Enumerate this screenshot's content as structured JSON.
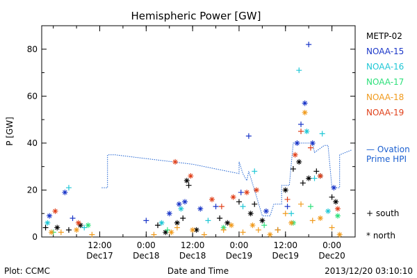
{
  "chart_data": {
    "type": "scatter",
    "title": "Hemispheric Power [GW]",
    "xlabel": "Date and Time",
    "ylabel": "P [GW]",
    "ylim": [
      0,
      90
    ],
    "xlim": [
      "2013-12-16 21:00",
      "2013-12-20 06:00"
    ],
    "y_ticks": [
      0,
      20,
      40,
      60,
      80
    ],
    "x_ticks": [
      {
        "at": "2013-12-17 12:00",
        "time": "12:00",
        "date": "Dec17"
      },
      {
        "at": "2013-12-18 00:00",
        "time": "0:00",
        "date": "Dec18"
      },
      {
        "at": "2013-12-18 12:00",
        "time": "12:00",
        "date": "Dec18"
      },
      {
        "at": "2013-12-19 00:00",
        "time": "0:00",
        "date": "Dec19"
      },
      {
        "at": "2013-12-19 12:00",
        "time": "12:00",
        "date": "Dec19"
      },
      {
        "at": "2013-12-20 00:00",
        "time": "0:00",
        "date": "Dec20"
      }
    ],
    "series": [
      {
        "name": "METP-02",
        "color": "#000000",
        "points": [
          [
            "2013-12-16 22:00",
            4,
            "+"
          ],
          [
            "2013-12-17 01:00",
            4,
            "*"
          ],
          [
            "2013-12-17 04:00",
            3,
            "+"
          ],
          [
            "2013-12-17 07:00",
            5,
            "*"
          ],
          [
            "2013-12-18 03:00",
            5,
            "+"
          ],
          [
            "2013-12-18 05:00",
            2,
            "*"
          ],
          [
            "2013-12-18 08:00",
            6,
            "*"
          ],
          [
            "2013-12-18 09:30",
            8,
            "+"
          ],
          [
            "2013-12-18 10:30",
            24,
            "*"
          ],
          [
            "2013-12-18 11:00",
            22,
            "+"
          ],
          [
            "2013-12-18 13:00",
            3,
            "*"
          ],
          [
            "2013-12-18 19:00",
            8,
            "+"
          ],
          [
            "2013-12-18 21:00",
            6,
            "*"
          ],
          [
            "2013-12-19 00:00",
            15,
            "+"
          ],
          [
            "2013-12-19 03:00",
            10,
            "*"
          ],
          [
            "2013-12-19 04:00",
            14,
            "+"
          ],
          [
            "2013-12-19 06:00",
            7,
            "*"
          ],
          [
            "2013-12-19 10:00",
            3,
            "+"
          ],
          [
            "2013-12-19 12:00",
            20,
            "*"
          ],
          [
            "2013-12-19 14:00",
            29,
            "+"
          ],
          [
            "2013-12-19 15:30",
            32,
            "*"
          ],
          [
            "2013-12-19 16:30",
            23,
            "+"
          ],
          [
            "2013-12-19 18:00",
            25,
            "*"
          ],
          [
            "2013-12-19 20:00",
            28,
            "+"
          ],
          [
            "2013-12-19 21:00",
            26,
            "*"
          ],
          [
            "2013-12-20 00:00",
            17,
            "+"
          ],
          [
            "2013-12-20 01:00",
            15,
            "*"
          ]
        ]
      },
      {
        "name": "NOAA-15",
        "color": "#1a36c8",
        "points": [
          [
            "2013-12-16 23:00",
            9,
            "*"
          ],
          [
            "2013-12-17 03:00",
            19,
            "*"
          ],
          [
            "2013-12-17 05:00",
            8,
            "+"
          ],
          [
            "2013-12-18 00:00",
            7,
            "+"
          ],
          [
            "2013-12-18 06:00",
            10,
            "*"
          ],
          [
            "2013-12-18 08:30",
            14,
            "*"
          ],
          [
            "2013-12-18 10:00",
            15,
            "*"
          ],
          [
            "2013-12-18 14:00",
            12,
            "*"
          ],
          [
            "2013-12-18 18:00",
            13,
            "+"
          ],
          [
            "2013-12-19 00:30",
            19,
            "+"
          ],
          [
            "2013-12-19 02:30",
            43,
            "+"
          ],
          [
            "2013-12-19 07:00",
            11,
            "*"
          ],
          [
            "2013-12-19 12:30",
            13,
            "+"
          ],
          [
            "2013-12-19 15:00",
            40,
            "*"
          ],
          [
            "2013-12-19 16:00",
            48,
            "+"
          ],
          [
            "2013-12-19 17:00",
            57,
            "*"
          ],
          [
            "2013-12-19 18:00",
            82,
            "+"
          ],
          [
            "2013-12-19 19:00",
            40,
            "*"
          ],
          [
            "2013-12-20 00:30",
            21,
            "*"
          ]
        ]
      },
      {
        "name": "NOAA-16",
        "color": "#1fc7d6",
        "points": [
          [
            "2013-12-16 22:30",
            6,
            "*"
          ],
          [
            "2013-12-17 04:00",
            21,
            "+"
          ],
          [
            "2013-12-17 08:00",
            4,
            "+"
          ],
          [
            "2013-12-18 04:00",
            6,
            "*"
          ],
          [
            "2013-12-18 09:00",
            12,
            "*"
          ],
          [
            "2013-12-18 16:00",
            7,
            "+"
          ],
          [
            "2013-12-19 01:00",
            13,
            "+"
          ],
          [
            "2013-12-19 04:00",
            28,
            "+"
          ],
          [
            "2013-12-19 13:30",
            10,
            "+"
          ],
          [
            "2013-12-19 15:30",
            71,
            "+"
          ],
          [
            "2013-12-19 17:30",
            45,
            "*"
          ],
          [
            "2013-12-19 19:30",
            25,
            "+"
          ],
          [
            "2013-12-19 21:30",
            44,
            "+"
          ],
          [
            "2013-12-19 23:00",
            11,
            "*"
          ]
        ]
      },
      {
        "name": "NOAA-17",
        "color": "#2ce07a",
        "points": [
          [
            "2013-12-17 00:00",
            2,
            "+"
          ],
          [
            "2013-12-17 09:00",
            5,
            "*"
          ],
          [
            "2013-12-18 05:30",
            3,
            "+"
          ],
          [
            "2013-12-18 20:00",
            4,
            "*"
          ],
          [
            "2013-12-19 06:30",
            5,
            "+"
          ],
          [
            "2013-12-19 14:00",
            6,
            "*"
          ],
          [
            "2013-12-19 18:30",
            13,
            "+"
          ],
          [
            "2013-12-20 01:30",
            9,
            "*"
          ]
        ]
      },
      {
        "name": "NOAA-18",
        "color": "#f09a1c",
        "points": [
          [
            "2013-12-16 23:30",
            2,
            "*"
          ],
          [
            "2013-12-17 02:00",
            2,
            "+"
          ],
          [
            "2013-12-17 06:00",
            3,
            "*"
          ],
          [
            "2013-12-17 10:00",
            1,
            "+"
          ],
          [
            "2013-12-18 02:00",
            1,
            "+"
          ],
          [
            "2013-12-18 06:30",
            2,
            "*"
          ],
          [
            "2013-12-18 08:00",
            4,
            "+"
          ],
          [
            "2013-12-18 12:00",
            3,
            "*"
          ],
          [
            "2013-12-18 15:00",
            1,
            "+"
          ],
          [
            "2013-12-18 20:00",
            3,
            "+"
          ],
          [
            "2013-12-18 22:00",
            5,
            "*"
          ],
          [
            "2013-12-19 01:00",
            2,
            "+"
          ],
          [
            "2013-12-19 03:30",
            5,
            "*"
          ],
          [
            "2013-12-19 05:00",
            3,
            "+"
          ],
          [
            "2013-12-19 08:00",
            1,
            "*"
          ],
          [
            "2013-12-19 10:00",
            3,
            "+"
          ],
          [
            "2013-12-19 12:00",
            10,
            "+"
          ],
          [
            "2013-12-19 13:30",
            6,
            "*"
          ],
          [
            "2013-12-19 16:00",
            14,
            "+"
          ],
          [
            "2013-12-19 17:00",
            53,
            "*"
          ],
          [
            "2013-12-19 19:00",
            7,
            "+"
          ],
          [
            "2013-12-19 21:00",
            8,
            "*"
          ],
          [
            "2013-12-20 00:00",
            4,
            "+"
          ],
          [
            "2013-12-20 02:00",
            1,
            "*"
          ]
        ]
      },
      {
        "name": "NOAA-19",
        "color": "#e0401a",
        "points": [
          [
            "2013-12-17 00:30",
            11,
            "*"
          ],
          [
            "2013-12-17 06:30",
            6,
            "*"
          ],
          [
            "2013-12-18 07:30",
            32,
            "*"
          ],
          [
            "2013-12-18 11:30",
            26,
            "*"
          ],
          [
            "2013-12-18 17:00",
            16,
            "*"
          ],
          [
            "2013-12-18 19:30",
            13,
            "+"
          ],
          [
            "2013-12-18 22:30",
            17,
            "*"
          ],
          [
            "2013-12-19 02:00",
            19,
            "*"
          ],
          [
            "2013-12-19 04:30",
            20,
            "*"
          ],
          [
            "2013-12-19 12:30",
            16,
            "+"
          ],
          [
            "2013-12-19 14:30",
            35,
            "*"
          ],
          [
            "2013-12-19 16:00",
            45,
            "+"
          ],
          [
            "2013-12-19 18:30",
            38,
            "+"
          ],
          [
            "2013-12-19 21:00",
            26,
            "*"
          ],
          [
            "2013-12-20 01:30",
            12,
            "*"
          ]
        ]
      }
    ],
    "ovation": {
      "name_line1": "— Ovation",
      "name_line2": "Prime HPI",
      "color": "#1a5fd0",
      "segments": [
        [
          [
            "2013-12-17 12:30",
            21
          ],
          [
            "2013-12-17 14:00",
            21
          ],
          [
            "2013-12-17 14:00",
            35
          ],
          [
            "2013-12-17 16:00",
            35
          ],
          [
            "2013-12-18 12:00",
            31
          ],
          [
            "2013-12-19 00:00",
            27
          ],
          [
            "2013-12-19 00:00",
            32
          ],
          [
            "2013-12-19 01:00",
            27
          ],
          [
            "2013-12-19 02:00",
            24
          ],
          [
            "2013-12-19 02:30",
            28
          ],
          [
            "2013-12-19 04:00",
            20
          ],
          [
            "2013-12-19 06:00",
            9
          ],
          [
            "2013-12-19 08:00",
            9
          ],
          [
            "2013-12-19 09:00",
            14
          ],
          [
            "2013-12-19 11:00",
            14
          ],
          [
            "2013-12-19 11:00",
            22
          ],
          [
            "2013-12-19 13:00",
            22
          ],
          [
            "2013-12-19 14:00",
            40
          ],
          [
            "2013-12-19 19:00",
            40
          ],
          [
            "2013-12-19 19:30",
            36
          ],
          [
            "2013-12-19 22:00",
            39
          ],
          [
            "2013-12-19 23:00",
            39
          ],
          [
            "2013-12-20 00:00",
            21
          ],
          [
            "2013-12-20 02:00",
            21
          ],
          [
            "2013-12-20 02:00",
            35
          ],
          [
            "2013-12-20 05:00",
            37
          ]
        ]
      ]
    },
    "symbol_legend": [
      {
        "symbol": "+",
        "label": "south"
      },
      {
        "symbol": "*",
        "label": "north"
      }
    ]
  },
  "footer": {
    "left": "Plot: CCMC",
    "right": "2013/12/20 03:10:10"
  }
}
